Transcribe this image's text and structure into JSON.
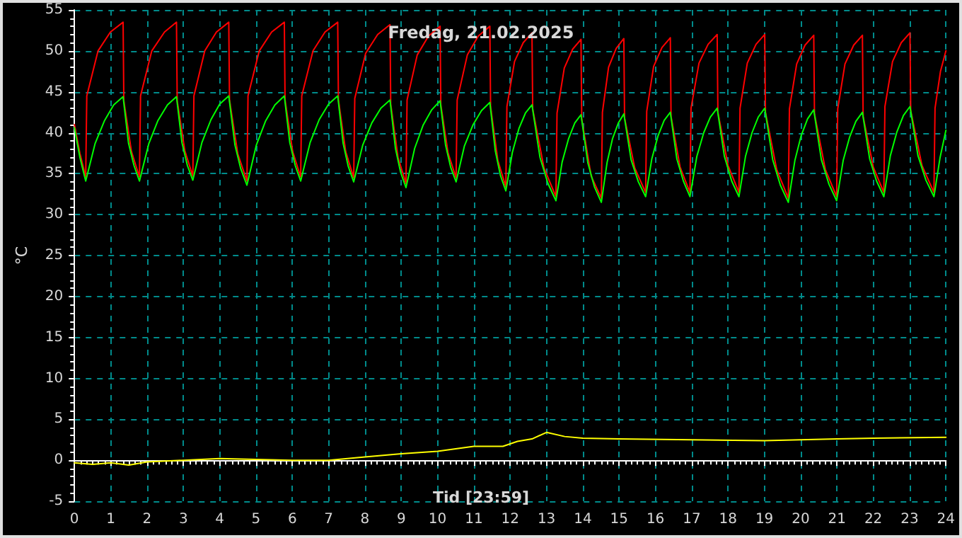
{
  "chart_data": {
    "type": "line",
    "title": "Fredag, 21.02.2025",
    "xlabel": "Tid [23:59]",
    "ylabel": "°C",
    "xlim": [
      0,
      24
    ],
    "xticks": [
      0,
      1,
      2,
      3,
      4,
      5,
      6,
      7,
      8,
      9,
      10,
      11,
      12,
      13,
      14,
      15,
      16,
      17,
      18,
      19,
      20,
      21,
      22,
      23,
      24
    ],
    "ylim": [
      -5,
      55
    ],
    "yticks": [
      -5,
      0,
      5,
      10,
      15,
      20,
      25,
      30,
      35,
      40,
      45,
      50,
      55
    ],
    "grid": true,
    "marker": "none",
    "line_style": "solid",
    "series": [
      {
        "color": "#ff0000",
        "x": [
          0,
          0.15,
          0.31,
          0.34,
          0.65,
          0.99,
          1.34,
          1.36,
          1.57,
          1.79,
          1.82,
          2.13,
          2.48,
          2.81,
          2.83,
          3.04,
          3.26,
          3.29,
          3.59,
          3.91,
          4.25,
          4.27,
          4.5,
          4.75,
          4.78,
          5.09,
          5.43,
          5.78,
          5.8,
          6.01,
          6.23,
          6.26,
          6.57,
          6.9,
          7.25,
          7.27,
          7.47,
          7.69,
          7.72,
          8.02,
          8.35,
          8.69,
          8.71,
          8.91,
          9.13,
          9.16,
          9.44,
          9.75,
          10.07,
          10.09,
          10.29,
          10.51,
          10.54,
          10.82,
          11.12,
          11.44,
          11.46,
          11.66,
          11.88,
          11.91,
          12.12,
          12.36,
          12.6,
          12.62,
          12.93,
          13.26,
          13.29,
          13.49,
          13.72,
          13.95,
          13.97,
          14.23,
          14.51,
          14.54,
          14.71,
          14.92,
          15.13,
          15.15,
          15.43,
          15.73,
          15.76,
          15.95,
          16.18,
          16.41,
          16.43,
          16.68,
          16.95,
          16.98,
          17.2,
          17.45,
          17.7,
          17.72,
          18.0,
          18.3,
          18.33,
          18.53,
          18.77,
          19.01,
          19.03,
          19.34,
          19.66,
          19.69,
          19.89,
          20.12,
          20.36,
          20.38,
          20.68,
          20.99,
          21.02,
          21.22,
          21.46,
          21.7,
          21.72,
          22.0,
          22.29,
          22.32,
          22.53,
          22.77,
          23.01,
          23.03,
          23.34,
          23.67,
          23.7,
          23.85,
          24
        ],
        "values": [
          41.0,
          37.5,
          34.6,
          44.5,
          50.0,
          52.3,
          53.5,
          43.9,
          37.7,
          34.6,
          44.5,
          50.0,
          52.3,
          53.5,
          43.9,
          37.8,
          34.7,
          44.5,
          50.0,
          52.3,
          53.5,
          44.0,
          37.4,
          34.1,
          44.5,
          50.0,
          52.3,
          53.5,
          44.0,
          37.7,
          34.6,
          44.5,
          50.0,
          52.3,
          53.5,
          44.0,
          37.7,
          34.5,
          44.2,
          49.7,
          52.0,
          53.2,
          43.5,
          37.0,
          33.8,
          44.0,
          49.5,
          51.8,
          53.0,
          43.4,
          37.5,
          34.5,
          44.0,
          49.5,
          51.8,
          53.0,
          43.2,
          36.6,
          33.4,
          43.2,
          48.7,
          51.0,
          52.2,
          42.9,
          35.7,
          32.2,
          42.4,
          47.9,
          50.2,
          51.4,
          41.7,
          34.7,
          32.0,
          42.5,
          48.0,
          50.3,
          51.5,
          41.8,
          35.7,
          32.7,
          42.6,
          48.1,
          50.4,
          51.6,
          42.0,
          35.8,
          32.7,
          43.0,
          48.5,
          50.8,
          52.0,
          42.5,
          36.0,
          32.7,
          43.0,
          48.5,
          50.8,
          52.0,
          42.5,
          35.5,
          32.0,
          42.9,
          48.4,
          50.7,
          51.9,
          42.3,
          35.5,
          32.2,
          42.9,
          48.4,
          50.7,
          51.9,
          42.0,
          35.8,
          32.7,
          43.2,
          48.7,
          51.0,
          52.2,
          42.7,
          36.0,
          32.7,
          43.0,
          47.5,
          50.0
        ]
      },
      {
        "color": "#00ff00",
        "x": [
          0,
          0.15,
          0.31,
          0.57,
          0.83,
          1.08,
          1.34,
          1.49,
          1.64,
          1.79,
          2.05,
          2.3,
          2.56,
          2.81,
          2.96,
          3.11,
          3.26,
          3.51,
          3.76,
          4.0,
          4.25,
          4.42,
          4.58,
          4.75,
          5.01,
          5.26,
          5.52,
          5.78,
          5.93,
          6.08,
          6.23,
          6.49,
          6.74,
          7.0,
          7.25,
          7.4,
          7.54,
          7.69,
          7.94,
          8.19,
          8.44,
          8.69,
          8.84,
          8.98,
          9.13,
          9.37,
          9.6,
          9.84,
          10.07,
          10.22,
          10.36,
          10.51,
          10.74,
          10.98,
          11.21,
          11.44,
          11.59,
          11.73,
          11.88,
          12.06,
          12.24,
          12.42,
          12.6,
          12.82,
          13.04,
          13.26,
          13.43,
          13.61,
          13.78,
          13.95,
          14.14,
          14.32,
          14.51,
          14.67,
          14.82,
          14.98,
          15.13,
          15.33,
          15.53,
          15.73,
          15.9,
          16.07,
          16.24,
          16.41,
          16.59,
          16.77,
          16.95,
          17.14,
          17.33,
          17.51,
          17.7,
          17.9,
          18.1,
          18.3,
          18.48,
          18.66,
          18.83,
          19.01,
          19.23,
          19.44,
          19.66,
          19.84,
          20.01,
          20.19,
          20.36,
          20.57,
          20.78,
          20.99,
          21.17,
          21.35,
          21.52,
          21.7,
          21.9,
          22.09,
          22.29,
          22.47,
          22.65,
          22.83,
          23.01,
          23.23,
          23.45,
          23.67,
          23.84,
          24
        ],
        "values": [
          40.6,
          37.0,
          34.1,
          38.7,
          41.5,
          43.4,
          44.4,
          38.7,
          36.0,
          34.1,
          38.7,
          41.5,
          43.4,
          44.4,
          38.8,
          36.0,
          34.2,
          38.8,
          41.6,
          43.5,
          44.5,
          38.5,
          35.6,
          33.6,
          38.5,
          41.4,
          43.4,
          44.5,
          38.8,
          36.0,
          34.1,
          38.8,
          41.6,
          43.5,
          44.5,
          38.7,
          35.9,
          34.0,
          38.5,
          41.2,
          43.0,
          44.0,
          38.1,
          35.2,
          33.3,
          38.1,
          40.9,
          42.8,
          43.9,
          38.5,
          35.8,
          34.0,
          38.4,
          41.0,
          42.7,
          43.7,
          37.8,
          34.8,
          32.9,
          37.6,
          40.5,
          42.4,
          43.4,
          37.0,
          33.8,
          31.7,
          36.4,
          39.3,
          41.2,
          42.2,
          36.3,
          33.4,
          31.5,
          36.4,
          39.3,
          41.2,
          42.3,
          36.7,
          34.0,
          32.2,
          36.8,
          39.6,
          41.5,
          42.5,
          36.8,
          34.1,
          32.2,
          37.1,
          40.0,
          41.9,
          43.0,
          37.1,
          34.1,
          32.2,
          37.1,
          40.0,
          41.9,
          43.0,
          36.7,
          33.6,
          31.5,
          36.6,
          39.6,
          41.7,
          42.8,
          36.7,
          33.7,
          31.7,
          36.6,
          39.5,
          41.4,
          42.5,
          36.8,
          34.1,
          32.2,
          37.2,
          40.1,
          42.1,
          43.2,
          37.2,
          34.2,
          32.2,
          37.0,
          40.3
        ]
      },
      {
        "color": "#ffff00",
        "x": [
          0,
          0.5,
          1,
          1.5,
          2,
          3,
          4,
          5,
          6,
          7,
          8,
          9,
          10,
          11,
          11.8,
          12.2,
          12.6,
          13,
          13.5,
          14,
          15,
          17,
          19,
          20,
          21,
          22,
          24
        ],
        "values": [
          -0.3,
          -0.5,
          -0.3,
          -0.6,
          -0.2,
          0,
          0.2,
          0.1,
          0,
          0,
          0.4,
          0.8,
          1.1,
          1.7,
          1.7,
          2.3,
          2.6,
          3.4,
          2.9,
          2.7,
          2.6,
          2.5,
          2.4,
          2.5,
          2.6,
          2.7,
          2.8
        ]
      }
    ]
  }
}
